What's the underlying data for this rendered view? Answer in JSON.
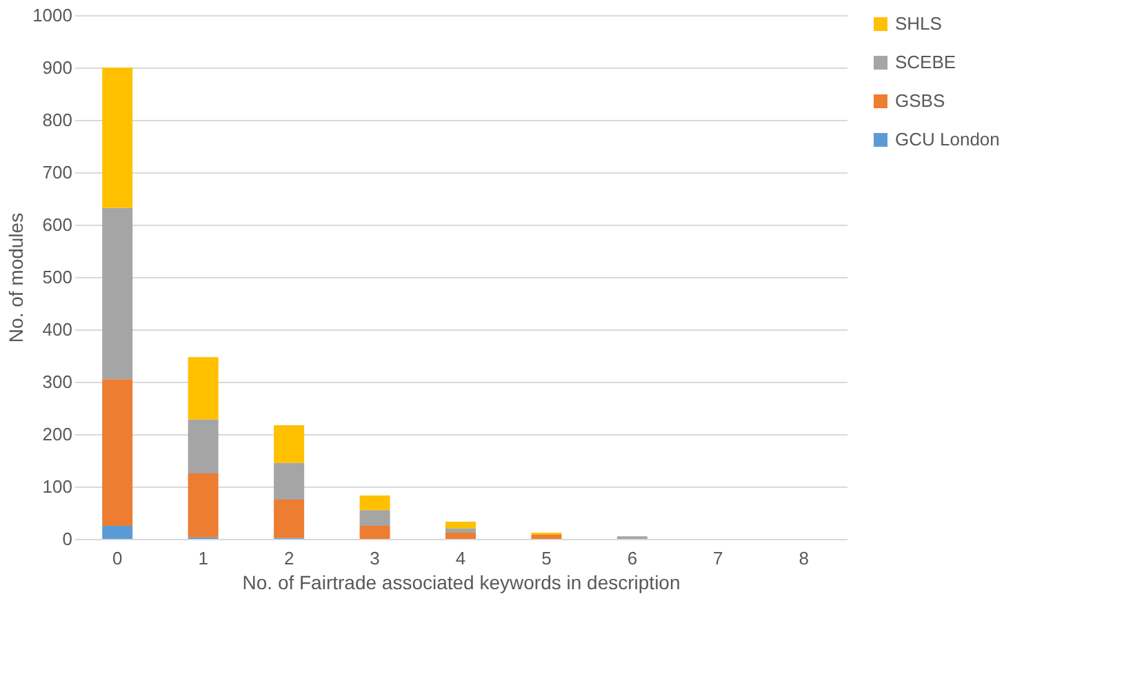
{
  "chart_data": {
    "type": "bar",
    "stacked": true,
    "xlabel": "No. of Fairtrade associated keywords in description",
    "ylabel": "No. of modules",
    "categories": [
      "0",
      "1",
      "2",
      "3",
      "4",
      "5",
      "6",
      "7",
      "8"
    ],
    "series": [
      {
        "name": "GCU London",
        "color": "#5b9bd5",
        "values": [
          25,
          3,
          2,
          null,
          null,
          null,
          null,
          null,
          null
        ]
      },
      {
        "name": "GSBS",
        "color": "#ed7d31",
        "values": [
          280,
          122,
          73,
          25,
          12,
          8,
          null,
          null,
          null
        ]
      },
      {
        "name": "SCEBE",
        "color": "#a5a5a5",
        "values": [
          327,
          103,
          70,
          30,
          8,
          null,
          5,
          null,
          null
        ]
      },
      {
        "name": "SHLS",
        "color": "#ffc000",
        "values": [
          268,
          119,
          72,
          28,
          13,
          4,
          null,
          null,
          null
        ]
      }
    ],
    "ylim": [
      0,
      1000
    ],
    "yticks": [
      0,
      100,
      200,
      300,
      400,
      500,
      600,
      700,
      800,
      900,
      1000
    ],
    "grid": "y",
    "legend": "right"
  }
}
